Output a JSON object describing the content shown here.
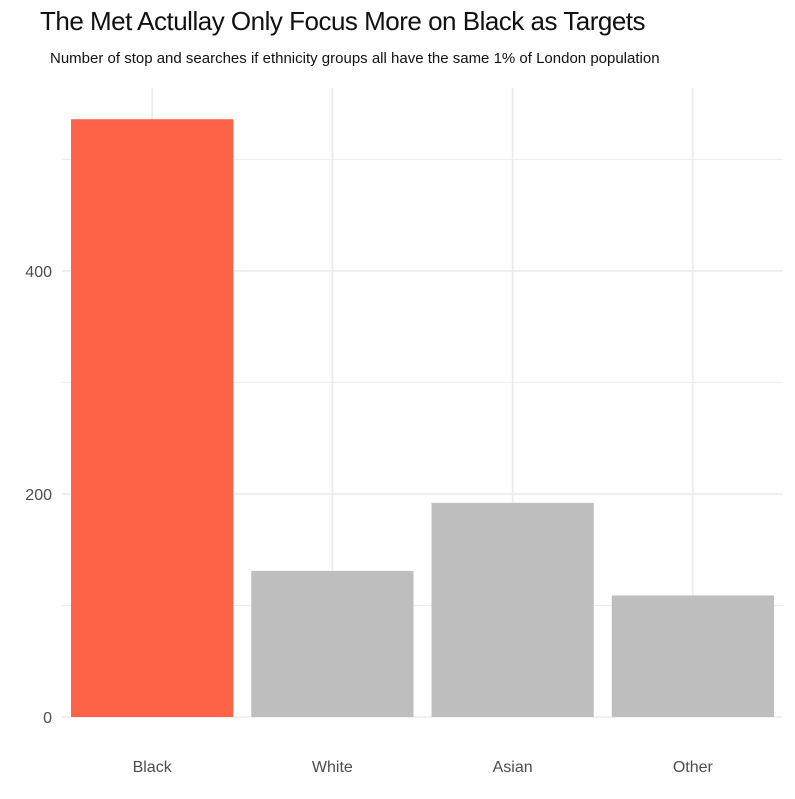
{
  "chart_data": {
    "type": "bar",
    "title": "The Met Actullay Only Focus More on Black as Targets",
    "subtitle": "Number of stop and searches if ethnicity groups all have the same 1% of London population",
    "xlabel": "",
    "ylabel": "",
    "categories": [
      "Black",
      "White",
      "Asian",
      "Other"
    ],
    "values": [
      536,
      131,
      192,
      109
    ],
    "colors": [
      "#ff6347",
      "#bebebe",
      "#bebebe",
      "#bebebe"
    ],
    "gridline_color": "#ebebeb",
    "yticks": [
      0,
      200,
      400
    ],
    "ylim": [
      0,
      564
    ],
    "grid": true,
    "legend": "none"
  }
}
